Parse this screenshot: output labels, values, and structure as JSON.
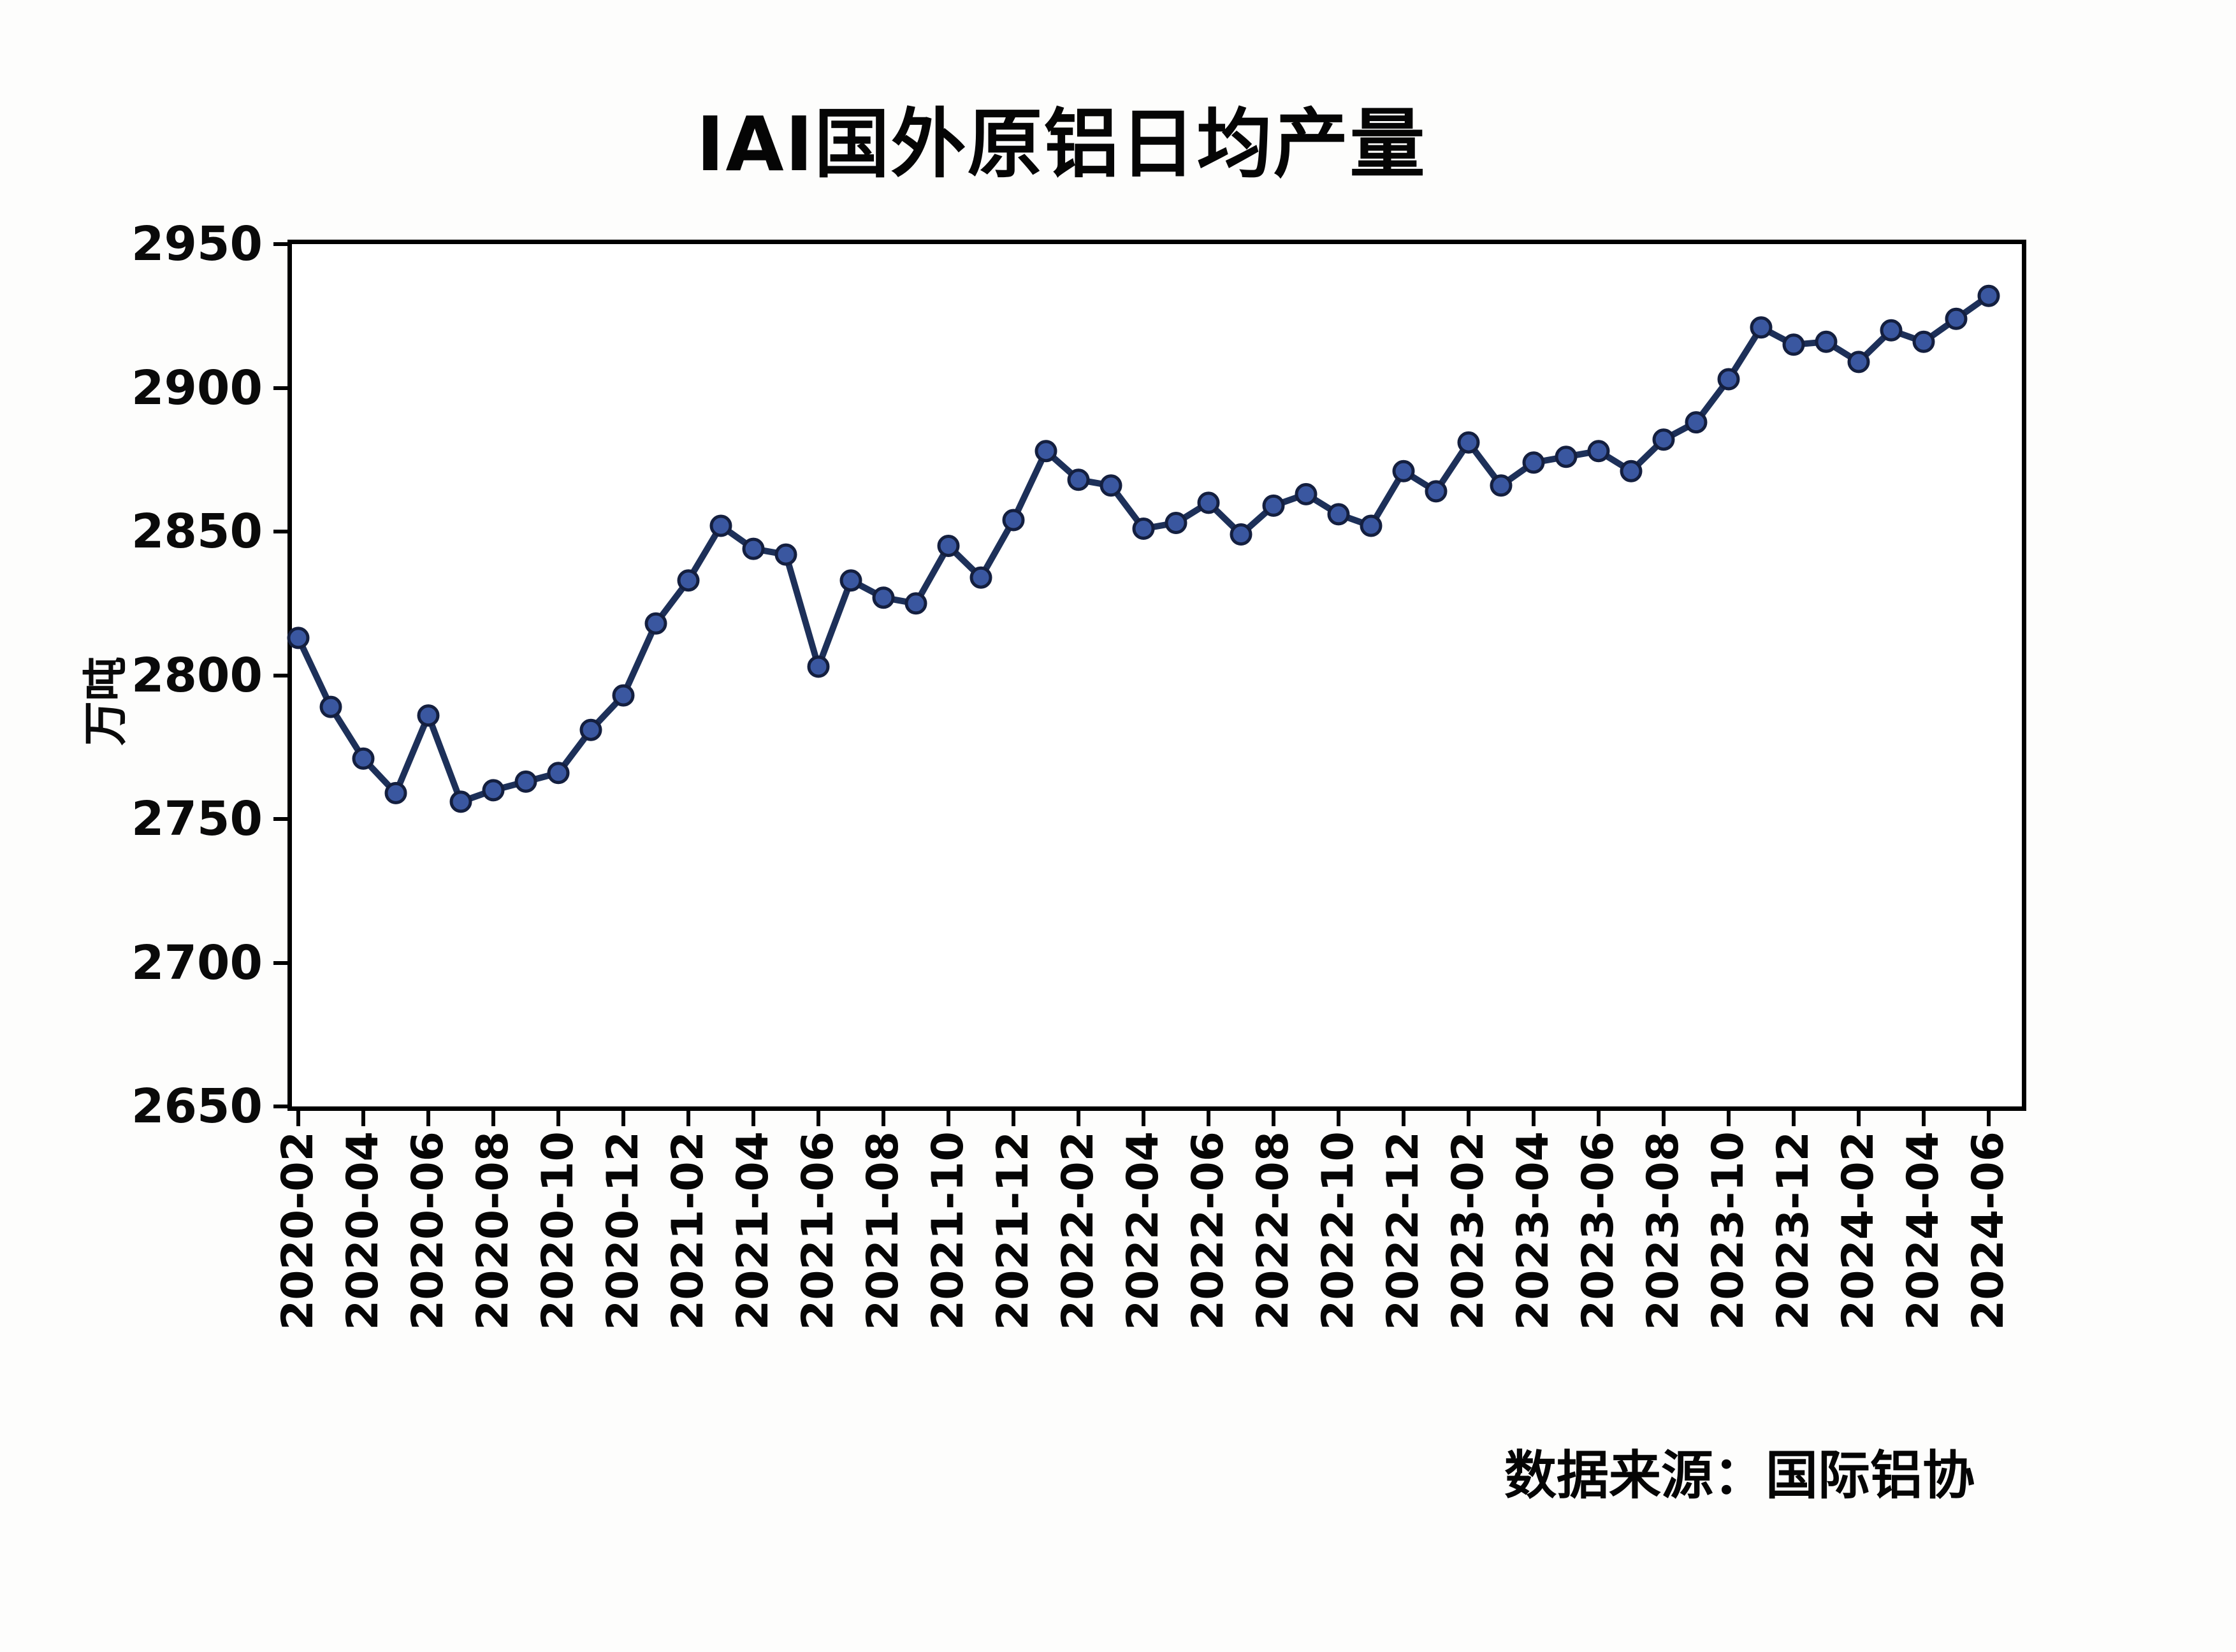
{
  "title": "IAI国外原铝日均产量",
  "source_note": "数据来源：国际铝协",
  "y_axis": {
    "unit_label": "万吨",
    "ticks": [
      2950,
      2900,
      2850,
      2800,
      2750,
      2700,
      2650
    ]
  },
  "chart_data": {
    "type": "line",
    "title": "IAI国外原铝日均产量",
    "xlabel": "",
    "ylabel": "万吨",
    "ylim": [
      2650,
      2950
    ],
    "grid": false,
    "legend": "none",
    "marker": "circle",
    "colors": {
      "line": "#1d3059",
      "marker_fill": "#3a57a0",
      "marker_edge": "#141f3f"
    },
    "x": [
      "2020-02",
      "2020-03",
      "2020-04",
      "2020-05",
      "2020-06",
      "2020-07",
      "2020-08",
      "2020-09",
      "2020-10",
      "2020-11",
      "2020-12",
      "2021-01",
      "2021-02",
      "2021-03",
      "2021-04",
      "2021-05",
      "2021-06",
      "2021-07",
      "2021-08",
      "2021-09",
      "2021-10",
      "2021-11",
      "2021-12",
      "2022-01",
      "2022-02",
      "2022-03",
      "2022-04",
      "2022-05",
      "2022-06",
      "2022-07",
      "2022-08",
      "2022-09",
      "2022-10",
      "2022-11",
      "2022-12",
      "2023-01",
      "2023-02",
      "2023-03",
      "2023-04",
      "2023-05",
      "2023-06",
      "2023-07",
      "2023-08",
      "2023-09",
      "2023-10",
      "2023-11",
      "2023-12",
      "2024-01",
      "2024-02",
      "2024-03",
      "2024-04",
      "2024-05",
      "2024-06"
    ],
    "x_tick_labels": [
      "2020-02",
      "2020-04",
      "2020-06",
      "2020-08",
      "2020-10",
      "2020-12",
      "2021-02",
      "2021-04",
      "2021-06",
      "2021-08",
      "2021-10",
      "2021-12",
      "2022-02",
      "2022-04",
      "2022-06",
      "2022-08",
      "2022-10",
      "2022-12",
      "2023-02",
      "2023-04",
      "2023-06",
      "2023-08",
      "2023-10",
      "2023-12",
      "2024-02",
      "2024-04",
      "2024-06"
    ],
    "series": [
      {
        "name": "IAI国外原铝日均产量",
        "values": [
          2813,
          2789,
          2771,
          2759,
          2786,
          2756,
          2760,
          2763,
          2766,
          2781,
          2793,
          2818,
          2833,
          2852,
          2844,
          2842,
          2803,
          2833,
          2827,
          2825,
          2845,
          2834,
          2854,
          2878,
          2868,
          2866,
          2851,
          2853,
          2860,
          2849,
          2859,
          2863,
          2856,
          2852,
          2871,
          2864,
          2881,
          2866,
          2874,
          2876,
          2878,
          2871,
          2882,
          2888,
          2903,
          2921,
          2915,
          2916,
          2909,
          2920,
          2916,
          2924,
          2932
        ]
      }
    ]
  }
}
